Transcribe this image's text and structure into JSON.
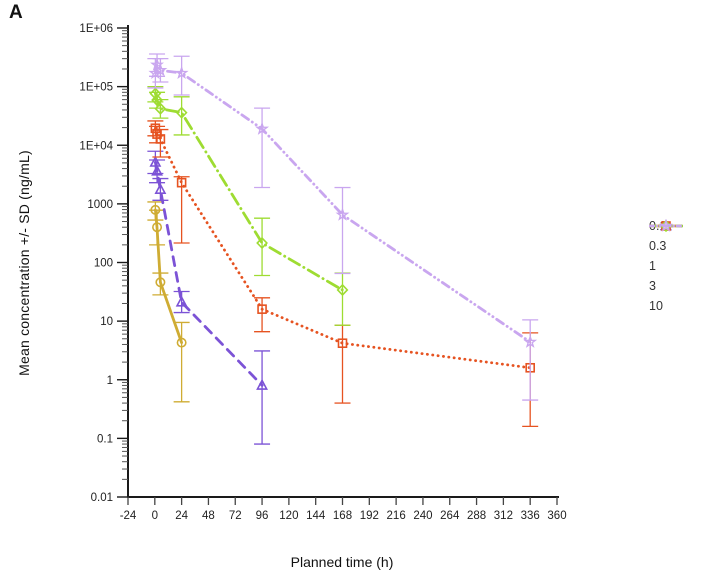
{
  "chart_data": {
    "type": "line",
    "panel_label": "A",
    "title": "",
    "xlabel": "Planned time (h)",
    "ylabel": "Mean concentration +/- SD (ng/mL)",
    "x_scale": "linear",
    "y_scale": "log",
    "xlim": [
      -24,
      360
    ],
    "ylim": [
      0.01,
      1000000
    ],
    "grid": false,
    "legend_position": "right",
    "x_ticks": [
      -24,
      0,
      24,
      48,
      72,
      96,
      120,
      144,
      168,
      192,
      216,
      240,
      264,
      288,
      312,
      336,
      360
    ],
    "y_ticks": [
      {
        "v": 1000000,
        "label": "1E+06"
      },
      {
        "v": 100000,
        "label": "1E+05"
      },
      {
        "v": 10000,
        "label": "1E+04"
      },
      {
        "v": 1000,
        "label": "1000"
      },
      {
        "v": 100,
        "label": "100"
      },
      {
        "v": 10,
        "label": "10"
      },
      {
        "v": 1,
        "label": "1"
      },
      {
        "v": 0.1,
        "label": "0.1"
      },
      {
        "v": 0.01,
        "label": "0.01"
      }
    ],
    "series": [
      {
        "name": "0.1",
        "color": "#CFAC33",
        "dash": "solid",
        "marker": "circle",
        "points": [
          {
            "t": 0.5,
            "y": 790,
            "lo": 530,
            "hi": 1080
          },
          {
            "t": 2,
            "y": 400,
            "lo": 200,
            "hi": 780
          },
          {
            "t": 5,
            "y": 46,
            "lo": 28,
            "hi": 66
          },
          {
            "t": 24,
            "y": 4.3,
            "lo": 0.42,
            "hi": 9.5
          }
        ]
      },
      {
        "name": "0.3",
        "color": "#7C53D6",
        "dash": "dashed",
        "marker": "triangle",
        "points": [
          {
            "t": 0.5,
            "y": 5100,
            "lo": 3300,
            "hi": 7900
          },
          {
            "t": 2,
            "y": 3600,
            "lo": 2300,
            "hi": 5600
          },
          {
            "t": 5,
            "y": 1750,
            "lo": 1150,
            "hi": 2700
          },
          {
            "t": 24,
            "y": 21,
            "lo": 14,
            "hi": 32
          },
          {
            "t": 96,
            "y": 0.8,
            "lo": 0.08,
            "hi": 3.1
          }
        ]
      },
      {
        "name": "1",
        "color": "#E65321",
        "dash": "dotted",
        "marker": "square",
        "points": [
          {
            "t": 0.5,
            "y": 19500,
            "lo": 14500,
            "hi": 26000
          },
          {
            "t": 2,
            "y": 15500,
            "lo": 11000,
            "hi": 21000
          },
          {
            "t": 5,
            "y": 12800,
            "lo": 6300,
            "hi": 18500
          },
          {
            "t": 24,
            "y": 2300,
            "lo": 215,
            "hi": 2900
          },
          {
            "t": 96,
            "y": 16,
            "lo": 6.6,
            "hi": 25
          },
          {
            "t": 168,
            "y": 4.2,
            "lo": 0.4,
            "hi": 8.5
          },
          {
            "t": 336,
            "y": 1.6,
            "lo": 0.16,
            "hi": 6.3
          }
        ]
      },
      {
        "name": "3",
        "color": "#9EDC32",
        "dash": "dashdot",
        "marker": "diamond",
        "points": [
          {
            "t": 0.5,
            "y": 76000,
            "lo": 55000,
            "hi": 100000
          },
          {
            "t": 2,
            "y": 59000,
            "lo": 43000,
            "hi": 80000
          },
          {
            "t": 5,
            "y": 42000,
            "lo": 29000,
            "hi": 60000
          },
          {
            "t": 24,
            "y": 36000,
            "lo": 15000,
            "hi": 67000
          },
          {
            "t": 96,
            "y": 215,
            "lo": 60,
            "hi": 570
          },
          {
            "t": 168,
            "y": 34,
            "lo": 8.5,
            "hi": 66
          }
        ]
      },
      {
        "name": "10",
        "color": "#C9A6EF",
        "dash": "dashdotdot",
        "marker": "star",
        "points": [
          {
            "t": 0.5,
            "y": 170000,
            "lo": 95000,
            "hi": 300000
          },
          {
            "t": 2,
            "y": 235000,
            "lo": 150000,
            "hi": 360000
          },
          {
            "t": 5,
            "y": 190000,
            "lo": 120000,
            "hi": 300000
          },
          {
            "t": 24,
            "y": 170000,
            "lo": 72000,
            "hi": 330000
          },
          {
            "t": 96,
            "y": 19000,
            "lo": 1900,
            "hi": 43000
          },
          {
            "t": 168,
            "y": 650,
            "lo": 65,
            "hi": 1900
          },
          {
            "t": 336,
            "y": 4.4,
            "lo": 0.45,
            "hi": 10.5
          }
        ]
      }
    ]
  }
}
